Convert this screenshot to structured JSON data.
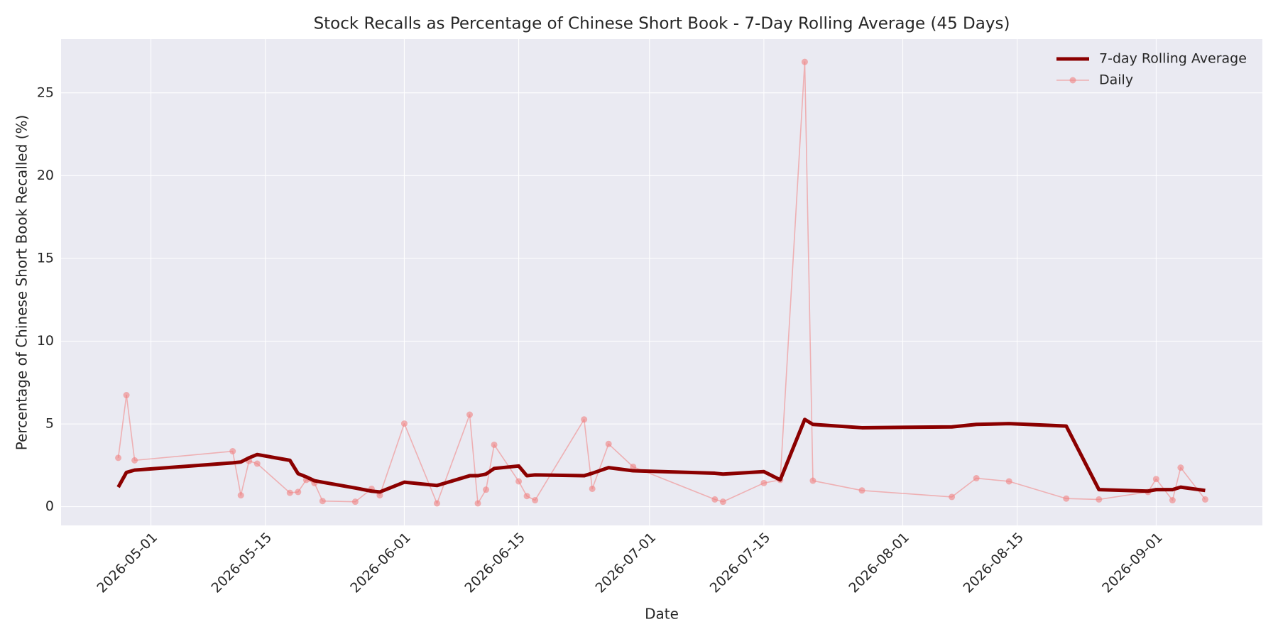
{
  "chart_data": {
    "type": "line",
    "title": "Stock Recalls as Percentage of Chinese Short Book - 7-Day Rolling Average (45 Days)",
    "xlabel": "Date",
    "ylabel": "Percentage of Chinese Short Book Recalled (%)",
    "x": [
      "2026-04-27",
      "2026-04-28",
      "2026-04-29",
      "2026-05-11",
      "2026-05-12",
      "2026-05-13",
      "2026-05-14",
      "2026-05-18",
      "2026-05-19",
      "2026-05-20",
      "2026-05-21",
      "2026-05-22",
      "2026-05-26",
      "2026-05-28",
      "2026-05-29",
      "2026-06-01",
      "2026-06-05",
      "2026-06-09",
      "2026-06-10",
      "2026-06-11",
      "2026-06-12",
      "2026-06-15",
      "2026-06-16",
      "2026-06-17",
      "2026-06-23",
      "2026-06-24",
      "2026-06-26",
      "2026-06-29",
      "2026-07-09",
      "2026-07-10",
      "2026-07-15",
      "2026-07-17",
      "2026-07-20",
      "2026-07-21",
      "2026-07-27",
      "2026-08-07",
      "2026-08-10",
      "2026-08-14",
      "2026-08-21",
      "2026-08-25",
      "2026-08-31",
      "2026-09-01",
      "2026-09-03",
      "2026-09-04",
      "2026-09-07"
    ],
    "series": [
      {
        "name": "7-day Rolling Average",
        "color": "#8b0000",
        "marker": false,
        "values": [
          1.18,
          2.07,
          2.21,
          2.65,
          2.7,
          2.95,
          3.15,
          2.8,
          2.0,
          1.8,
          1.57,
          1.48,
          1.13,
          0.94,
          0.89,
          1.48,
          1.28,
          1.87,
          1.87,
          1.97,
          2.31,
          2.46,
          1.87,
          1.92,
          1.87,
          2.02,
          2.36,
          2.17,
          2.02,
          1.97,
          2.12,
          1.62,
          5.27,
          4.97,
          4.77,
          4.82,
          4.97,
          5.02,
          4.87,
          1.03,
          0.94,
          1.03,
          1.03,
          1.18,
          0.98
        ]
      },
      {
        "name": "Daily",
        "color": "#f08080",
        "marker": true,
        "values": [
          2.95,
          6.74,
          2.8,
          3.35,
          0.69,
          2.76,
          2.6,
          0.84,
          0.89,
          1.62,
          1.43,
          0.34,
          0.3,
          1.08,
          0.69,
          5.02,
          0.2,
          5.56,
          0.2,
          1.03,
          3.74,
          1.53,
          0.64,
          0.39,
          5.27,
          1.08,
          3.79,
          2.41,
          0.44,
          0.3,
          1.43,
          1.62,
          26.87,
          1.57,
          0.98,
          0.59,
          1.72,
          1.53,
          0.49,
          0.44,
          0.89,
          1.67,
          0.39,
          2.36,
          0.44
        ]
      }
    ],
    "xlim": [
      "2026-04-20",
      "2026-09-14"
    ],
    "xticks": [
      "2026-05-01",
      "2026-05-15",
      "2026-06-01",
      "2026-06-15",
      "2026-07-01",
      "2026-07-15",
      "2026-08-01",
      "2026-08-15",
      "2026-09-01"
    ],
    "ylim": [
      -1.13,
      28.25
    ],
    "yticks": [
      0,
      5,
      10,
      15,
      20,
      25
    ],
    "grid": true,
    "legend": "upper right"
  }
}
